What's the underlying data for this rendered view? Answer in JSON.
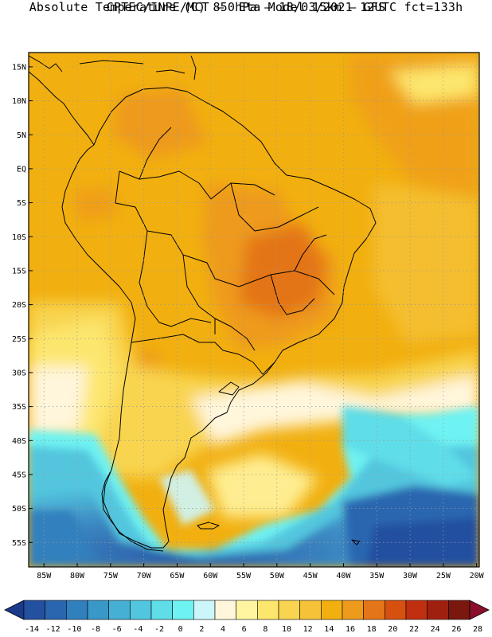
{
  "header": {
    "title_line1": "CPTEC/INPE/MCT –  Eta Model 15km – GFS",
    "title_line2": "Absolute Temperature (C) 850hPa – 18/03/2021 12UTC fct=133h"
  },
  "map": {
    "lat_labels": [
      "15N",
      "10N",
      "5N",
      "EQ",
      "5S",
      "10S",
      "15S",
      "20S",
      "25S",
      "30S",
      "35S",
      "40S",
      "45S",
      "50S",
      "55S"
    ],
    "lon_labels": [
      "85W",
      "80W",
      "75W",
      "70W",
      "65W",
      "60W",
      "55W",
      "50W",
      "45W",
      "40W",
      "35W",
      "30W",
      "25W",
      "20W"
    ],
    "lat_values": [
      15,
      10,
      5,
      0,
      -5,
      -10,
      -15,
      -20,
      -25,
      -30,
      -35,
      -40,
      -45,
      -50,
      -55
    ],
    "lon_values": [
      -85,
      -80,
      -75,
      -70,
      -65,
      -60,
      -55,
      -50,
      -45,
      -40,
      -35,
      -30,
      -25,
      -20
    ]
  },
  "colorbar": {
    "labels": [
      "-14",
      "-12",
      "-10",
      "-8",
      "-6",
      "-4",
      "-2",
      "0",
      "2",
      "4",
      "6",
      "8",
      "10",
      "12",
      "14",
      "16",
      "18",
      "20",
      "22",
      "24",
      "26",
      "28"
    ],
    "colors": [
      "#1b3a8c",
      "#2450a0",
      "#2a66b0",
      "#3080be",
      "#3a98c8",
      "#45afd4",
      "#52c6de",
      "#5fdde8",
      "#6ef2f2",
      "#cdf6fa",
      "#fff6dc",
      "#fff4a0",
      "#fde66e",
      "#f8d450",
      "#f5c238",
      "#f2b010",
      "#ee9a1a",
      "#e47518",
      "#d65010",
      "#c03010",
      "#a02010",
      "#7a1810",
      "#8a0f2a"
    ]
  }
}
